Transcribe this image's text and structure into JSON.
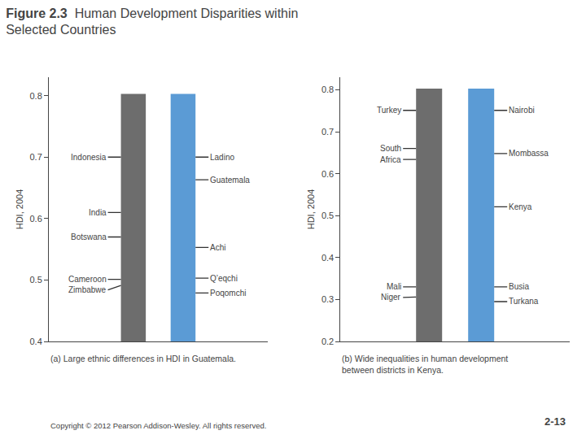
{
  "title": "Figure 2.3",
  "subtitle": "Human Development Disparities within\nSelected Countries",
  "annotations": [
    "Copyright © 2012 Pearson Addison-Wesley. All rights reserved.",
    "2-13"
  ],
  "chart_data": [
    {
      "type": "bar",
      "title": "(a) Large ethnic differences in HDI in Guatemala.",
      "ylabel": "HDI, 2004",
      "categories": [
        null,
        null
      ],
      "values": [
        0.803,
        0.803
      ],
      "colors": [
        "#6d6d6d",
        "#5b9bd5"
      ],
      "ylim": [
        0.4,
        0.83
      ],
      "yticks": [
        0.4,
        0.5,
        0.6,
        0.7,
        0.8
      ],
      "grid": false,
      "tick_labels": "y",
      "annotations": [
        {
          "text": "Indonesia",
          "x": 0,
          "y": 0.7
        },
        {
          "text": "India",
          "x": 0,
          "y": 0.61
        },
        {
          "text": "Botswana",
          "x": 0,
          "y": 0.57
        },
        {
          "text": "Cameroon",
          "x": 0,
          "y": 0.501
        },
        {
          "text": "Zimbabwe",
          "x": 0,
          "y": 0.491
        },
        {
          "text": "Ladino",
          "x": 1,
          "y": 0.7
        },
        {
          "text": "Guatemala",
          "x": 1,
          "y": 0.663
        },
        {
          "text": "Achi",
          "x": 1,
          "y": 0.553
        },
        {
          "text": "Q’eqchi",
          "x": 1,
          "y": 0.503
        },
        {
          "text": "Poqomchi",
          "x": 1,
          "y": 0.479
        }
      ]
    },
    {
      "type": "bar",
      "title": "(b) Wide inequalities in human development\nbetween districts in Kenya.",
      "ylabel": "HDI, 2004",
      "categories": [
        null,
        null
      ],
      "values": [
        0.803,
        0.803
      ],
      "colors": [
        "#6d6d6d",
        "#5b9bd5"
      ],
      "ylim": [
        0.2,
        0.83
      ],
      "yticks": [
        0.2,
        0.3,
        0.4,
        0.5,
        0.6,
        0.7,
        0.8
      ],
      "grid": false,
      "tick_labels": "y",
      "annotations": [
        {
          "text": "Turkey",
          "x": 0,
          "y": 0.751
        },
        {
          "text": "South",
          "x": 0,
          "y": 0.66
        },
        {
          "text": "Africa",
          "x": 0,
          "y": 0.634
        },
        {
          "text": "Mali",
          "x": 0,
          "y": 0.33
        },
        {
          "text": "Niger",
          "x": 0,
          "y": 0.306
        },
        {
          "text": "Nairobi",
          "x": 1,
          "y": 0.751
        },
        {
          "text": "Mombassa",
          "x": 1,
          "y": 0.648
        },
        {
          "text": "Kenya",
          "x": 1,
          "y": 0.521
        },
        {
          "text": "Busia",
          "x": 1,
          "y": 0.33
        },
        {
          "text": "Turkana",
          "x": 1,
          "y": 0.295
        }
      ]
    }
  ]
}
